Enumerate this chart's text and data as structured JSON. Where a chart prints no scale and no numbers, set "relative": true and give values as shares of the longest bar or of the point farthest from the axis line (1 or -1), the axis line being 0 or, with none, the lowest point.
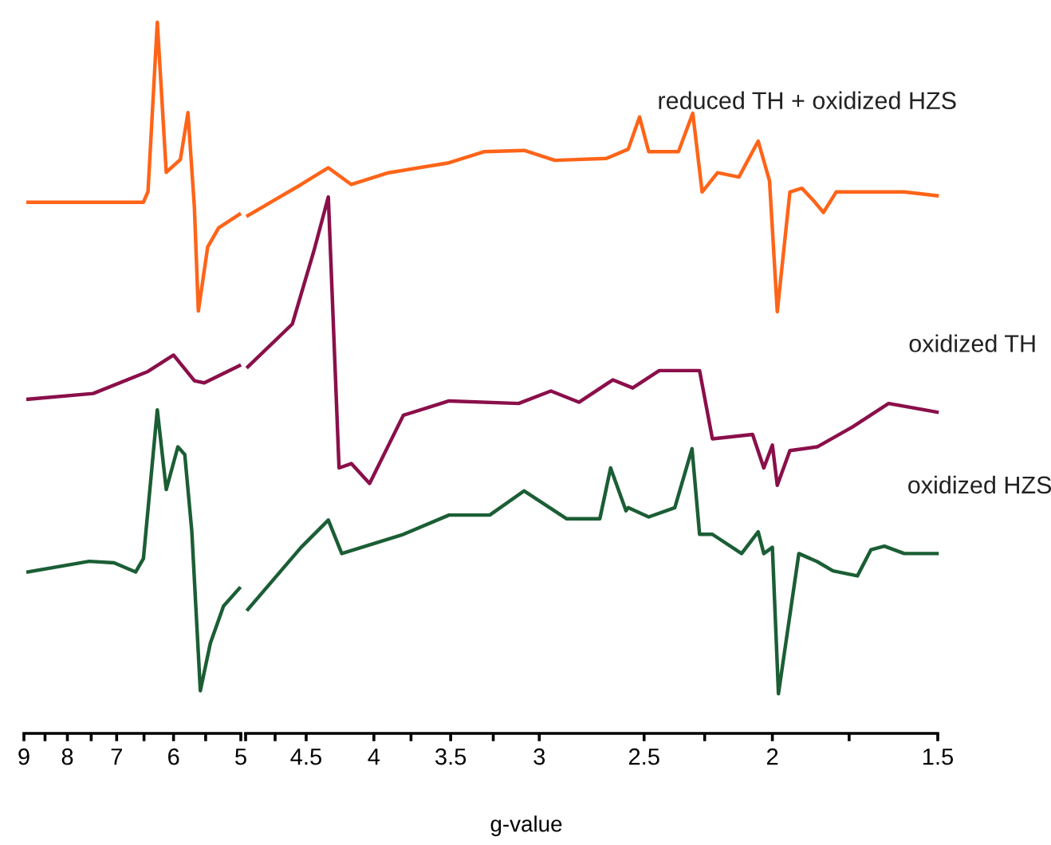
{
  "chart_data": [
    {
      "type": "line",
      "relative": true,
      "log": "x",
      "xlim": [
        9,
        5
      ],
      "xticks": [
        9,
        {
          "value": 8.5,
          "label": null
        },
        8,
        {
          "value": 7.5,
          "label": null
        },
        7,
        {
          "value": 6.5,
          "label": null
        },
        6,
        {
          "value": 5.5,
          "label": null
        },
        5
      ],
      "tick_labels": "x",
      "legend": false,
      "grid": false,
      "series": [
        {
          "color": "#ff6418",
          "x": [
            8.9,
            7.46,
            6.51,
            6.43,
            6.27,
            6.12,
            5.89,
            5.77,
            5.67,
            5.61,
            5.47,
            5.31,
            5.02
          ],
          "values": [
            0.747,
            0.747,
            0.747,
            0.762,
            1.0,
            0.789,
            0.807,
            0.873,
            0.739,
            0.594,
            0.684,
            0.711,
            0.73
          ]
        },
        {
          "color": "#8a0f4a",
          "x": [
            8.9,
            7.46,
            6.43,
            6.0,
            5.67,
            5.52,
            5.02
          ],
          "values": [
            0.47,
            0.478,
            0.509,
            0.532,
            0.496,
            0.493,
            0.517
          ]
        },
        {
          "color": "#1b5e35",
          "x": [
            8.9,
            7.54,
            7.05,
            6.65,
            6.51,
            6.27,
            6.12,
            5.93,
            5.82,
            5.71,
            5.58,
            5.43,
            5.24,
            5.02
          ],
          "values": [
            0.227,
            0.242,
            0.24,
            0.227,
            0.246,
            0.455,
            0.343,
            0.403,
            0.392,
            0.284,
            0.06,
            0.127,
            0.179,
            0.204
          ]
        }
      ]
    },
    {
      "type": "line",
      "relative": true,
      "log": "x",
      "xlim": [
        5,
        1.5
      ],
      "xticks": [
        {
          "value": 5,
          "label": null
        },
        {
          "value": 4.75,
          "label": null
        },
        4.5,
        4,
        {
          "value": 3.75,
          "label": null
        },
        3.5,
        {
          "value": 3.25,
          "label": null
        },
        3,
        2.5,
        {
          "value": 2.25,
          "label": null
        },
        2,
        {
          "value": 1.75,
          "label": null
        },
        1.5
      ],
      "tick_labels": "x",
      "legend": false,
      "grid": false,
      "xlabel": "g-value",
      "series": [
        {
          "name": "reduced TH + oxidized HZS",
          "color": "#ff6418",
          "x": [
            4.98,
            4.54,
            4.33,
            4.16,
            3.9,
            3.51,
            3.3,
            3.08,
            2.92,
            2.67,
            2.57,
            2.52,
            2.48,
            2.355,
            2.297,
            2.26,
            2.2,
            2.12,
            2.05,
            2.01,
            1.983,
            1.94,
            1.9,
            1.86,
            1.83,
            1.79,
            1.685,
            1.59,
            1.502
          ],
          "values": [
            0.835,
            0.885,
            0.912,
            0.885,
            0.904,
            0.92,
            0.938,
            0.94,
            0.924,
            0.927,
            0.942,
            0.994,
            0.938,
            0.938,
            1.0,
            0.873,
            0.904,
            0.897,
            0.955,
            0.891,
            0.68,
            0.873,
            0.879,
            0.858,
            0.84,
            0.873,
            0.873,
            0.873,
            0.867
          ]
        },
        {
          "name": "oxidized TH",
          "color": "#8a0f4a",
          "x": [
            4.98,
            4.61,
            4.44,
            4.33,
            4.25,
            4.16,
            4.03,
            3.8,
            3.51,
            3.11,
            2.94,
            2.8,
            2.64,
            2.55,
            2.435,
            2.27,
            2.22,
            2.07,
            2.03,
            2.0,
            1.983,
            1.94,
            1.85,
            1.74,
            1.634,
            1.502
          ],
          "values": [
            0.591,
            0.66,
            0.778,
            0.865,
            0.428,
            0.435,
            0.403,
            0.513,
            0.536,
            0.532,
            0.552,
            0.534,
            0.57,
            0.557,
            0.585,
            0.585,
            0.475,
            0.482,
            0.428,
            0.465,
            0.4,
            0.456,
            0.462,
            0.494,
            0.532,
            0.518
          ]
        },
        {
          "name": "oxidized HZS",
          "color": "#1b5e35",
          "x": [
            4.98,
            4.54,
            4.33,
            4.23,
            3.8,
            3.51,
            3.27,
            3.08,
            2.86,
            2.7,
            2.65,
            2.58,
            2.57,
            2.48,
            2.37,
            2.3,
            2.27,
            2.22,
            2.11,
            2.05,
            2.03,
            2.0,
            1.979,
            1.91,
            1.85,
            1.8,
            1.725,
            1.685,
            1.646,
            1.59,
            1.502
          ],
          "values": [
            0.2,
            0.3,
            0.344,
            0.29,
            0.321,
            0.352,
            0.352,
            0.391,
            0.346,
            0.346,
            0.428,
            0.359,
            0.364,
            0.349,
            0.364,
            0.459,
            0.321,
            0.321,
            0.29,
            0.325,
            0.29,
            0.3,
            0.064,
            0.29,
            0.277,
            0.262,
            0.254,
            0.296,
            0.302,
            0.29,
            0.29
          ]
        }
      ]
    }
  ]
}
